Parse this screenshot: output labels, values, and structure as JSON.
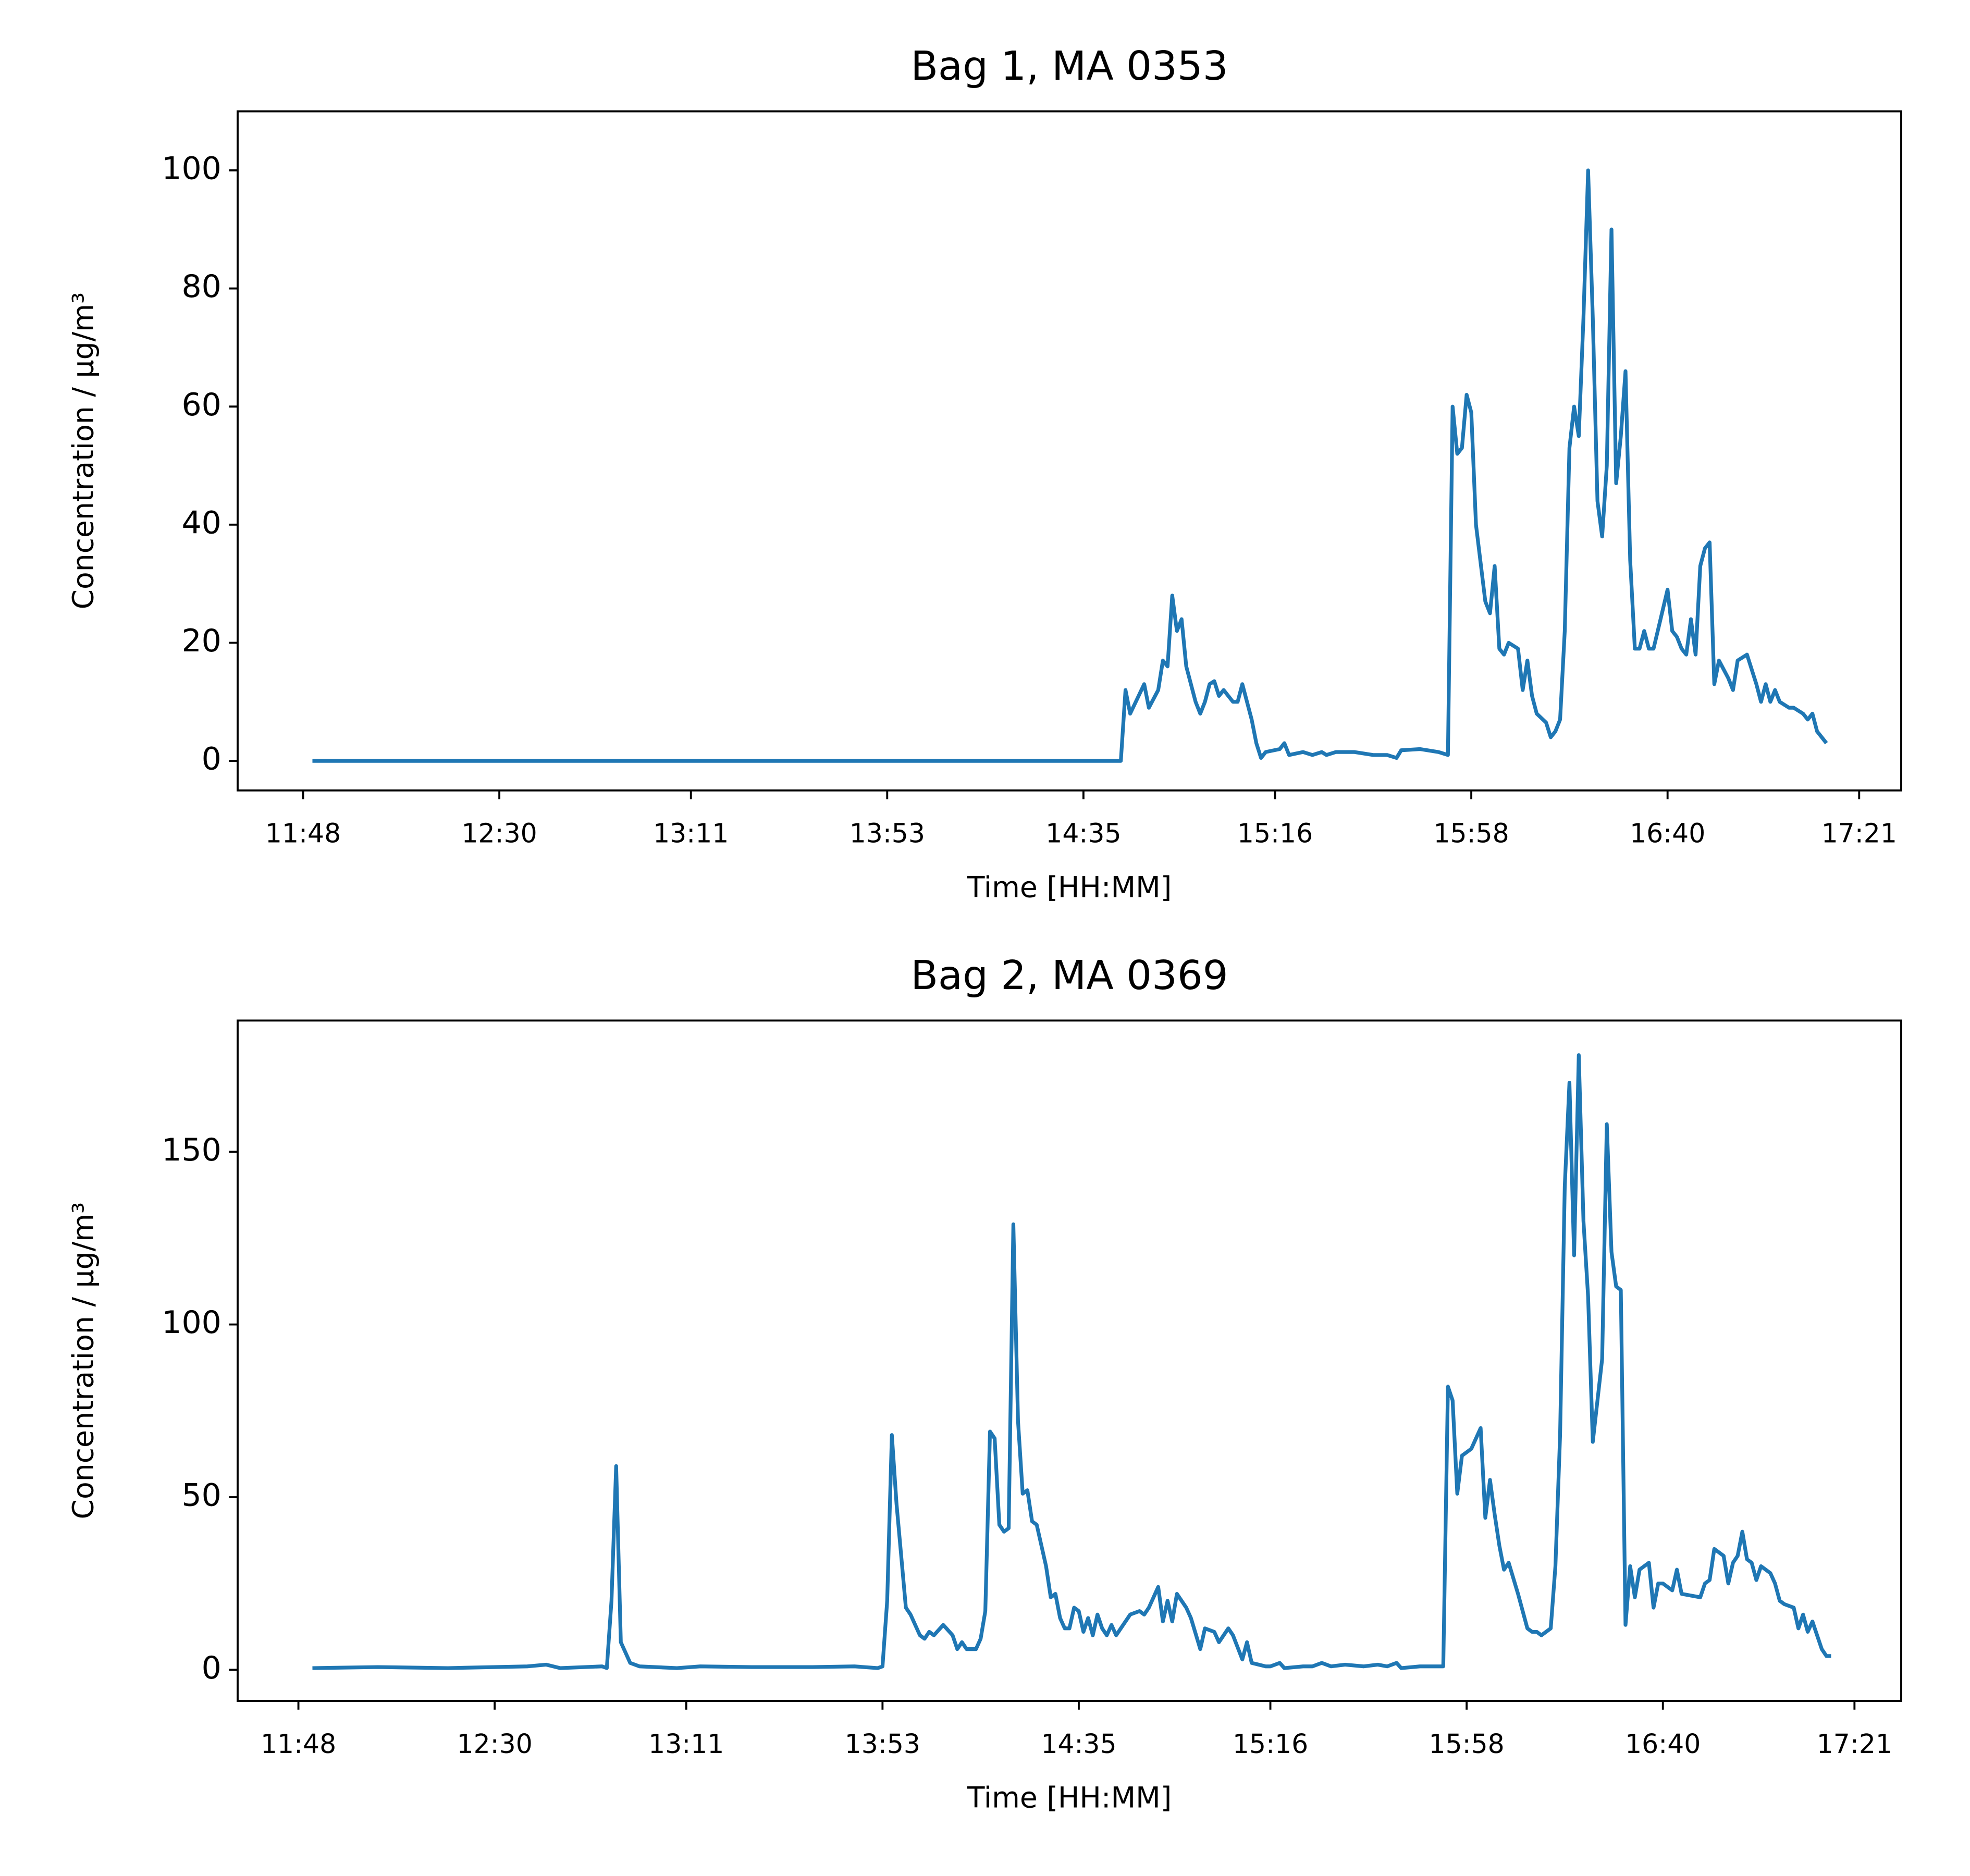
{
  "chart_data": [
    {
      "type": "line",
      "title": "Bag 1, MA 0353",
      "x_label": "Time [HH:MM]",
      "y_label": "Concentration / μg/m³",
      "color": "#1f77b4",
      "xlim": [
        "11:34",
        "17:30"
      ],
      "xticks": [
        "11:48",
        "12:30",
        "13:11",
        "13:53",
        "14:35",
        "15:16",
        "15:58",
        "16:40",
        "17:21"
      ],
      "ylim": [
        -5,
        110
      ],
      "yticks": [
        0,
        20,
        40,
        60,
        80,
        100
      ],
      "x": [
        "11:50",
        "14:43",
        "14:44",
        "14:45",
        "14:48",
        "14:49",
        "14:51",
        "14:52",
        "14:53",
        "14:54",
        "14:55",
        "14:56",
        "14:57",
        "14:59",
        "15:00",
        "15:01",
        "15:02",
        "15:03",
        "15:04",
        "15:05",
        "15:07",
        "15:08",
        "15:09",
        "15:11",
        "15:12",
        "15:13",
        "15:14",
        "15:17",
        "15:18",
        "15:19",
        "15:22",
        "15:24",
        "15:26",
        "15:27",
        "15:29",
        "15:33",
        "15:37",
        "15:40",
        "15:42",
        "15:43",
        "15:47",
        "15:51",
        "15:53",
        "15:54",
        "15:55",
        "15:56",
        "15:57",
        "15:58",
        "15:59",
        "16:01",
        "16:02",
        "16:03",
        "16:04",
        "16:05",
        "16:06",
        "16:08",
        "16:09",
        "16:10",
        "16:11",
        "16:12",
        "16:14",
        "16:15",
        "16:16",
        "16:17",
        "16:18",
        "16:19",
        "16:20",
        "16:21",
        "16:22",
        "16:23",
        "16:24",
        "16:25",
        "16:26",
        "16:27",
        "16:28",
        "16:29",
        "16:30",
        "16:31",
        "16:32",
        "16:33",
        "16:34",
        "16:35",
        "16:36",
        "16:37",
        "16:40",
        "16:41",
        "16:42",
        "16:43",
        "16:44",
        "16:45",
        "16:46",
        "16:47",
        "16:48",
        "16:49",
        "16:50",
        "16:51",
        "16:53",
        "16:54",
        "16:55",
        "16:57",
        "16:59",
        "17:00",
        "17:01",
        "17:02",
        "17:03",
        "17:04",
        "17:06",
        "17:07",
        "17:09",
        "17:10",
        "17:11",
        "17:12",
        "17:14"
      ],
      "values": [
        0,
        0,
        12,
        8,
        13,
        9,
        12,
        17,
        16,
        28,
        22,
        24,
        16,
        10,
        8,
        10,
        13,
        13.5,
        11,
        12,
        10,
        10,
        13,
        7,
        3,
        0.5,
        1.5,
        2,
        3,
        1,
        1.5,
        1,
        1.5,
        1,
        1.5,
        1.5,
        1,
        1,
        0.5,
        1.8,
        2,
        1.5,
        1,
        60,
        52,
        53,
        62,
        59,
        40,
        27,
        25,
        33,
        19,
        18,
        20,
        19,
        12,
        17,
        11,
        8,
        6.5,
        4,
        5,
        7,
        22,
        53,
        60,
        55,
        75,
        100,
        75,
        44,
        38,
        50,
        90,
        47,
        55,
        66,
        34,
        19,
        19,
        22,
        19,
        19,
        29,
        22,
        21,
        19,
        18,
        24,
        18,
        33,
        36,
        37,
        13,
        17,
        14,
        12,
        17,
        18,
        13,
        10,
        13,
        10,
        12,
        10,
        9,
        9,
        8,
        7,
        8,
        5,
        3
      ]
    },
    {
      "type": "line",
      "title": "Bag 2, MA 0369",
      "x_label": "Time [HH:MM]",
      "y_label": "Concentration / μg/m³",
      "color": "#1f77b4",
      "xlim": [
        "11:35",
        "17:31"
      ],
      "xticks": [
        "11:48",
        "12:30",
        "13:11",
        "13:53",
        "14:35",
        "15:16",
        "15:58",
        "16:40",
        "17:21"
      ],
      "ylim": [
        -9,
        188
      ],
      "yticks": [
        0,
        50,
        100,
        150
      ],
      "x": [
        "11:51",
        "12:05",
        "12:20",
        "12:37",
        "12:41",
        "12:44",
        "12:53",
        "12:54",
        "12:55",
        "12:56",
        "12:57",
        "12:59",
        "13:01",
        "13:09",
        "13:14",
        "13:25",
        "13:38",
        "13:47",
        "13:52",
        "13:53",
        "13:54",
        "13:55",
        "13:56",
        "13:58",
        "13:59",
        "14:01",
        "14:02",
        "14:03",
        "14:04",
        "14:06",
        "14:08",
        "14:09",
        "14:10",
        "14:11",
        "14:13",
        "14:14",
        "14:15",
        "14:16",
        "14:17",
        "14:18",
        "14:19",
        "14:20",
        "14:21",
        "14:22",
        "14:23",
        "14:24",
        "14:25",
        "14:26",
        "14:28",
        "14:29",
        "14:30",
        "14:31",
        "14:32",
        "14:33",
        "14:34",
        "14:35",
        "14:36",
        "14:37",
        "14:38",
        "14:39",
        "14:40",
        "14:41",
        "14:42",
        "14:43",
        "14:45",
        "14:46",
        "14:48",
        "14:49",
        "14:50",
        "14:52",
        "14:53",
        "14:54",
        "14:55",
        "14:56",
        "14:58",
        "14:59",
        "15:01",
        "15:02",
        "15:04",
        "15:05",
        "15:07",
        "15:08",
        "15:10",
        "15:11",
        "15:12",
        "15:15",
        "15:16",
        "15:18",
        "15:19",
        "15:23",
        "15:25",
        "15:27",
        "15:29",
        "15:32",
        "15:36",
        "15:39",
        "15:41",
        "15:43",
        "15:44",
        "15:48",
        "15:52",
        "15:53",
        "15:54",
        "15:55",
        "15:56",
        "15:57",
        "15:59",
        "16:01",
        "16:02",
        "16:03",
        "16:04",
        "16:05",
        "16:06",
        "16:07",
        "16:09",
        "16:11",
        "16:12",
        "16:13",
        "16:14",
        "16:16",
        "16:17",
        "16:18",
        "16:19",
        "16:20",
        "16:21",
        "16:22",
        "16:23",
        "16:24",
        "16:25",
        "16:27",
        "16:28",
        "16:29",
        "16:30",
        "16:31",
        "16:32",
        "16:33",
        "16:34",
        "16:35",
        "16:37",
        "16:38",
        "16:39",
        "16:40",
        "16:42",
        "16:43",
        "16:44",
        "16:48",
        "16:49",
        "16:50",
        "16:51",
        "16:53",
        "16:54",
        "16:55",
        "16:56",
        "16:57",
        "16:58",
        "16:59",
        "17:00",
        "17:01",
        "17:03",
        "17:04",
        "17:05",
        "17:06",
        "17:08",
        "17:09",
        "17:10",
        "17:11",
        "17:12",
        "17:13",
        "17:14",
        "17:15",
        "17:16"
      ],
      "values": [
        0.5,
        0.8,
        0.5,
        1,
        1.5,
        0.5,
        1,
        0.5,
        20,
        59,
        8,
        2,
        1,
        0.5,
        1,
        0.8,
        0.8,
        1,
        0.5,
        1,
        20,
        68,
        48,
        18,
        16,
        10,
        9,
        11,
        10,
        13,
        10,
        6,
        8,
        6,
        6,
        9,
        17,
        69,
        67,
        42,
        40,
        41,
        129,
        72,
        51,
        52,
        43,
        42,
        30,
        21,
        22,
        15,
        12,
        12,
        18,
        17,
        11,
        15,
        10,
        16,
        12,
        10,
        13,
        10,
        14,
        16,
        17,
        16,
        18,
        24,
        14,
        20,
        14,
        22,
        18,
        15,
        6,
        12,
        11,
        8,
        12,
        10,
        3,
        8,
        2,
        1,
        1,
        2,
        0.5,
        1,
        1,
        2,
        1,
        1.5,
        1,
        1.5,
        1,
        2,
        0.5,
        1,
        1,
        1,
        82,
        78,
        51,
        62,
        64,
        70,
        44,
        55,
        45,
        36,
        29,
        31,
        22,
        12,
        11,
        11,
        10,
        12,
        30,
        68,
        140,
        170,
        120,
        178,
        130,
        108,
        66,
        90,
        158,
        121,
        111,
        110,
        13,
        30,
        21,
        29,
        31,
        18,
        25,
        25,
        23,
        29,
        22,
        21,
        25,
        26,
        35,
        33,
        25,
        31,
        33,
        40,
        32,
        31,
        26,
        30,
        28,
        25,
        20,
        19,
        18,
        12,
        16,
        11,
        14,
        10,
        6,
        4,
        4
      ]
    }
  ]
}
